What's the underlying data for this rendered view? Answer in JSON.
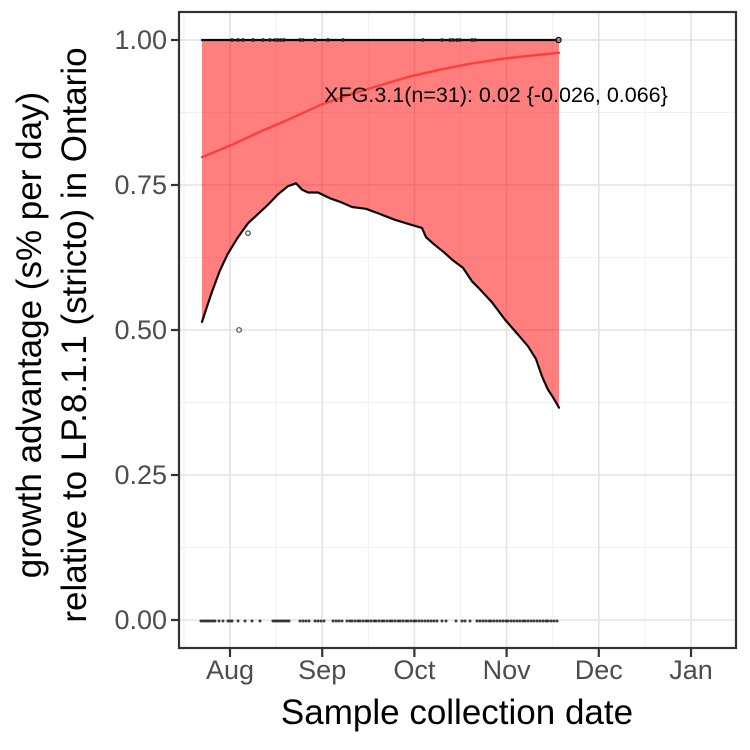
{
  "figure": {
    "x_title": "Sample collection date",
    "y_title_line1": "growth advantage (s% per day)",
    "y_title_line2": "relative to LP.8.1.1 (stricto) in Ontario",
    "annotation": "XFG.3.1(n=31): 0.02 {-0.026, 0.066}"
  },
  "chart_data": {
    "type": "line",
    "title": "",
    "xlabel": "Sample collection date",
    "ylabel": "growth advantage (s% per day)\nrelative to LP.8.1.1 (stricto) in Ontario",
    "x_unit": "months_since_aug_1",
    "x_tick_values": [
      0,
      1,
      2,
      3,
      4,
      5
    ],
    "x_tick_labels": [
      "Aug",
      "Sep",
      "Oct",
      "Nov",
      "Dec",
      "Jan"
    ],
    "x_minor_ticks": [
      -0.5,
      0.5,
      1.5,
      2.5,
      3.5,
      4.5
    ],
    "y_tick_values": [
      0,
      0.25,
      0.5,
      0.75,
      1.0
    ],
    "y_tick_labels": [
      "0.00",
      "0.25",
      "0.50",
      "0.75",
      "1.00"
    ],
    "y_minor_ticks": [
      0.125,
      0.375,
      0.625,
      0.875
    ],
    "ylim": [
      -0.048,
      1.048
    ],
    "xlim": [
      -0.553,
      5.49
    ],
    "grid": true,
    "legend": false,
    "annotation": {
      "text": "XFG.3.1(n=31): 0.02 {-0.026, 0.066}",
      "variant": "XFG.3.1",
      "n": 31,
      "estimate": 0.02,
      "ci_low": -0.026,
      "ci_high": 0.066
    },
    "series": [
      {
        "name": "fitted-frequency",
        "style": "line",
        "points": [
          [
            -0.304,
            0.798
          ],
          [
            0.0,
            0.818
          ],
          [
            0.33,
            0.842
          ],
          [
            0.65,
            0.864
          ],
          [
            0.98,
            0.888
          ],
          [
            1.3,
            0.906
          ],
          [
            1.63,
            0.922
          ],
          [
            1.95,
            0.937
          ],
          [
            2.28,
            0.949
          ],
          [
            2.6,
            0.959
          ],
          [
            2.93,
            0.967
          ],
          [
            3.25,
            0.973
          ],
          [
            3.568,
            0.978
          ]
        ]
      },
      {
        "name": "ci-upper-bound",
        "style": "line",
        "points": [
          [
            -0.304,
            1.0
          ],
          [
            3.568,
            1.0
          ]
        ]
      },
      {
        "name": "ci-lower-bound",
        "style": "line",
        "points": [
          [
            -0.304,
            0.514
          ],
          [
            -0.26,
            0.535
          ],
          [
            -0.195,
            0.566
          ],
          [
            -0.108,
            0.603
          ],
          [
            -0.022,
            0.632
          ],
          [
            0.087,
            0.66
          ],
          [
            0.195,
            0.684
          ],
          [
            0.304,
            0.7
          ],
          [
            0.412,
            0.716
          ],
          [
            0.521,
            0.734
          ],
          [
            0.629,
            0.748
          ],
          [
            0.716,
            0.753
          ],
          [
            0.781,
            0.742
          ],
          [
            0.846,
            0.737
          ],
          [
            0.954,
            0.737
          ],
          [
            1.085,
            0.727
          ],
          [
            1.193,
            0.721
          ],
          [
            1.323,
            0.712
          ],
          [
            1.475,
            0.709
          ],
          [
            1.627,
            0.7
          ],
          [
            1.789,
            0.69
          ],
          [
            1.952,
            0.682
          ],
          [
            2.082,
            0.676
          ],
          [
            2.126,
            0.66
          ],
          [
            2.212,
            0.648
          ],
          [
            2.321,
            0.634
          ],
          [
            2.419,
            0.62
          ],
          [
            2.527,
            0.607
          ],
          [
            2.625,
            0.584
          ],
          [
            2.711,
            0.57
          ],
          [
            2.841,
            0.548
          ],
          [
            2.983,
            0.518
          ],
          [
            3.102,
            0.496
          ],
          [
            3.232,
            0.472
          ],
          [
            3.319,
            0.45
          ],
          [
            3.384,
            0.42
          ],
          [
            3.449,
            0.397
          ],
          [
            3.503,
            0.384
          ],
          [
            3.547,
            0.372
          ],
          [
            3.568,
            0.366
          ]
        ]
      }
    ],
    "scatter": {
      "top_points_y": 1.0,
      "top_points_x": [
        0.022,
        0.087,
        0.141,
        0.249,
        0.358,
        0.434,
        0.488,
        0.521,
        0.553,
        0.586,
        0.759,
        0.792,
        0.922,
        1.063,
        1.226,
        2.093,
        2.299,
        2.386,
        2.419,
        2.462,
        2.495,
        2.625,
        2.658
      ],
      "bottom_points_y": 0.0,
      "bottom_points_x": [
        -0.315,
        -0.293,
        -0.271,
        -0.249,
        -0.228,
        -0.206,
        -0.184,
        -0.163,
        -0.119,
        -0.076,
        -0.022,
        0.0,
        0.022,
        0.087,
        0.163,
        0.239,
        0.325,
        0.466,
        0.488,
        0.51,
        0.531,
        0.553,
        0.575,
        0.597,
        0.618,
        0.64,
        0.759,
        0.792,
        0.824,
        0.857,
        0.922,
        0.954,
        0.987,
        1.02,
        1.117,
        1.15,
        1.182,
        1.215,
        1.269,
        1.301,
        1.323,
        1.356,
        1.388,
        1.41,
        1.443,
        1.475,
        1.497,
        1.529,
        1.562,
        1.583,
        1.616,
        1.649,
        1.67,
        1.703,
        1.735,
        1.757,
        1.789,
        1.822,
        1.844,
        1.876,
        1.909,
        1.93,
        1.963,
        1.995,
        2.017,
        2.05,
        2.082,
        2.115,
        2.147,
        2.18,
        2.212,
        2.245,
        2.299,
        2.343,
        2.451,
        2.516,
        2.549,
        2.603,
        2.679,
        2.711,
        2.744,
        2.776,
        2.809,
        2.831,
        2.863,
        2.896,
        2.928,
        2.961,
        2.993,
        3.015,
        3.048,
        3.08,
        3.113,
        3.145,
        3.178,
        3.2,
        3.232,
        3.265,
        3.297,
        3.33,
        3.362,
        3.395,
        3.427,
        3.449,
        3.482,
        3.514,
        3.547
      ],
      "mid_outliers": [
        [
          0.195,
          0.667
        ],
        [
          0.098,
          0.5
        ]
      ],
      "end_marker": [
        3.563,
        1.0
      ]
    },
    "colors": {
      "ribbon_fill": "#FF0000",
      "ribbon_opacity": 0.5,
      "fit_line": "#FB4040",
      "bound_line": "#0a0a0a",
      "point": "#1f1f1f",
      "grid_major": "#E3E3E3",
      "grid_minor": "#F1F1F1",
      "panel_border": "#333333",
      "tick": "#333333",
      "tick_text": "#4d4d4d"
    }
  }
}
